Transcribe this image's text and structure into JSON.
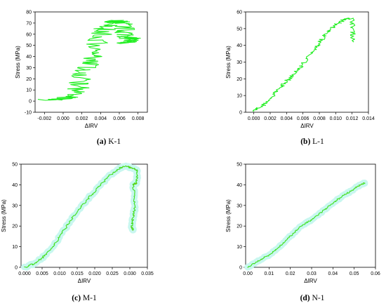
{
  "colors": {
    "trace": "#22ee22",
    "trace_dark": "#c8a000",
    "halo": "#c8f7ef",
    "frame": "#000000"
  },
  "chart_data": [
    {
      "type": "line",
      "caption_letter": "(a)",
      "caption_label": "K-1",
      "xlabel": "ΔIRV",
      "ylabel": "Stress (MPa)",
      "xlim": [
        -0.003,
        0.009
      ],
      "ylim": [
        -10,
        80
      ],
      "xticks": [
        -0.002,
        0.0,
        0.002,
        0.004,
        0.006,
        0.008
      ],
      "xtick_labels": [
        "-0.002",
        "0.000",
        "0.002",
        "0.004",
        "0.006",
        "0.008"
      ],
      "yticks": [
        -10,
        0,
        10,
        20,
        30,
        40,
        50,
        60,
        70,
        80
      ],
      "ytick_labels": [
        "-10",
        "0",
        "10",
        "20",
        "30",
        "40",
        "50",
        "60",
        "70",
        "80"
      ],
      "noise": 0.0012,
      "halo": false,
      "series": [
        {
          "x": [
            -0.0015,
            0.0,
            0.0008,
            0.0015,
            0.002,
            0.0025,
            0.003,
            0.0035,
            0.004,
            0.0045,
            0.005,
            0.0055,
            0.006,
            0.0064,
            0.0066,
            0.0069,
            0.0072,
            0.0068,
            0.007
          ],
          "y": [
            1,
            2,
            5,
            11,
            20,
            30,
            40,
            50,
            60,
            66,
            71,
            72,
            71,
            69,
            62,
            58,
            56,
            52,
            55
          ]
        }
      ]
    },
    {
      "type": "line",
      "caption_letter": "(b)",
      "caption_label": "L-1",
      "xlabel": "ΔIRV",
      "ylabel": "Stress (MPa)",
      "xlim": [
        -0.001,
        0.014
      ],
      "ylim": [
        0,
        60
      ],
      "xticks": [
        0.0,
        0.002,
        0.004,
        0.006,
        0.008,
        0.01,
        0.012,
        0.014
      ],
      "xtick_labels": [
        "0.000",
        "0.002",
        "0.004",
        "0.006",
        "0.008",
        "0.010",
        "0.012",
        "0.014"
      ],
      "yticks": [
        0,
        10,
        20,
        30,
        40,
        50,
        60
      ],
      "ytick_labels": [
        "0",
        "10",
        "20",
        "30",
        "40",
        "50",
        "60"
      ],
      "noise": 0.0003,
      "halo": false,
      "series": [
        {
          "x": [
            0.0,
            0.0008,
            0.0015,
            0.0025,
            0.0035,
            0.0045,
            0.0055,
            0.0065,
            0.0075,
            0.0085,
            0.0095,
            0.0105,
            0.0113,
            0.012,
            0.0121,
            0.0121
          ],
          "y": [
            1,
            3,
            6,
            11,
            16,
            21,
            26,
            32,
            38,
            45,
            50,
            54,
            56,
            56,
            50,
            42
          ]
        }
      ]
    },
    {
      "type": "line",
      "caption_letter": "(c)",
      "caption_label": "M-1",
      "xlabel": "ΔIRV",
      "ylabel": "Stress (MPa)",
      "xlim": [
        -0.001,
        0.035
      ],
      "ylim": [
        0,
        50
      ],
      "xticks": [
        0.0,
        0.005,
        0.01,
        0.015,
        0.02,
        0.025,
        0.03,
        0.035
      ],
      "xtick_labels": [
        "0.000",
        "0.005",
        "0.010",
        "0.015",
        "0.020",
        "0.025",
        "0.030",
        "0.035"
      ],
      "yticks": [
        0,
        10,
        20,
        30,
        40,
        50
      ],
      "ytick_labels": [
        "0",
        "10",
        "20",
        "30",
        "40",
        "50"
      ],
      "noise": 0.0003,
      "halo": true,
      "series": [
        {
          "x": [
            0.0,
            0.003,
            0.006,
            0.009,
            0.012,
            0.015,
            0.018,
            0.021,
            0.024,
            0.027,
            0.029,
            0.031,
            0.032,
            0.032,
            0.031,
            0.0315,
            0.031,
            0.0305,
            0.031
          ],
          "y": [
            0,
            2,
            6,
            12,
            20,
            27,
            33,
            39,
            44,
            48,
            49,
            48,
            47,
            41,
            40,
            30,
            25,
            20,
            18
          ]
        }
      ]
    },
    {
      "type": "line",
      "caption_letter": "(d)",
      "caption_label": "N-1",
      "xlabel": "ΔIRV",
      "ylabel": "Stress (MPa)",
      "xlim": [
        -0.001,
        0.06
      ],
      "ylim": [
        0,
        50
      ],
      "xticks": [
        0.0,
        0.01,
        0.02,
        0.03,
        0.04,
        0.05,
        0.06
      ],
      "xtick_labels": [
        "0.00",
        "0.01",
        "0.02",
        "0.03",
        "0.04",
        "0.05",
        "0.06"
      ],
      "yticks": [
        0,
        10,
        20,
        30,
        40,
        50
      ],
      "ytick_labels": [
        "0",
        "10",
        "20",
        "30",
        "40",
        "50"
      ],
      "noise": 0.0003,
      "halo": true,
      "series": [
        {
          "x": [
            0.0,
            0.005,
            0.01,
            0.015,
            0.02,
            0.025,
            0.03,
            0.035,
            0.04,
            0.045,
            0.05,
            0.053,
            0.055
          ],
          "y": [
            0,
            3,
            6,
            10,
            15,
            20,
            23,
            27,
            31,
            35,
            38,
            40,
            41
          ]
        }
      ]
    }
  ]
}
